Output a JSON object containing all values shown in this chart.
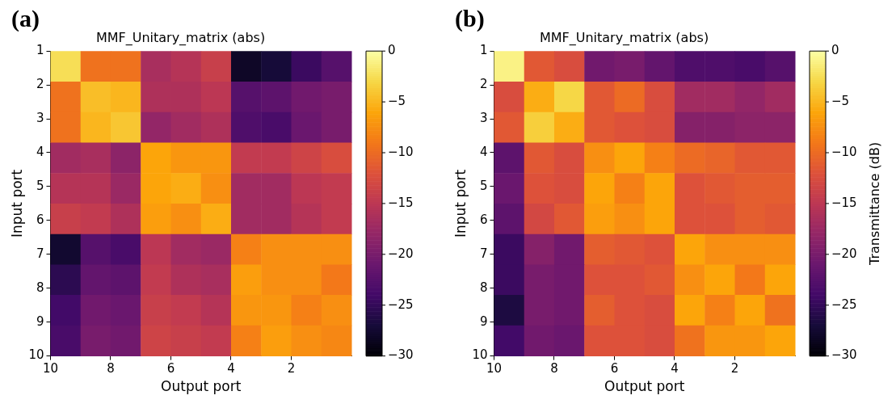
{
  "chart_data": [
    {
      "type": "heatmap",
      "title": "MMF_Unitary_matrix (abs)",
      "xlabel": "Output port",
      "ylabel": "Input port",
      "annotations": [
        "(a)"
      ],
      "xlim": [
        10,
        0
      ],
      "xticks": [
        10,
        8,
        6,
        4,
        2
      ],
      "ylim": [
        10,
        1
      ],
      "yticks": [
        1,
        2,
        3,
        4,
        5,
        6,
        7,
        8,
        9,
        10
      ],
      "clim": [
        -30,
        0
      ],
      "cticks": [
        0,
        -5,
        -10,
        -15,
        -20,
        -25,
        -30
      ],
      "cells": [
        [
          -2.5,
          -9.5,
          -9.5,
          -16.5,
          -15.5,
          -14,
          -28,
          -27,
          -24.5,
          -22.5
        ],
        [
          -9.5,
          -4.5,
          -5,
          -16,
          -16,
          -15,
          -22.5,
          -22,
          -20.5,
          -20
        ],
        [
          -9.5,
          -5,
          -4,
          -18,
          -17,
          -16,
          -23,
          -23.5,
          -21,
          -20
        ],
        [
          -17,
          -16.5,
          -18.5,
          -6,
          -7,
          -7,
          -14.5,
          -14.5,
          -13.5,
          -12.5
        ],
        [
          -15.5,
          -15.5,
          -17.5,
          -6,
          -5.5,
          -7.5,
          -17,
          -17,
          -15,
          -14.5
        ],
        [
          -14,
          -14.5,
          -16,
          -6.5,
          -7.5,
          -5.5,
          -17,
          -17,
          -15.5,
          -14.5
        ],
        [
          -27.5,
          -22.5,
          -23.5,
          -15,
          -17,
          -17.5,
          -8.5,
          -7.5,
          -7.5,
          -7.5
        ],
        [
          -25.5,
          -21.5,
          -22,
          -14.5,
          -16,
          -16.5,
          -6.5,
          -7.5,
          -7.5,
          -9
        ],
        [
          -24,
          -20.5,
          -21,
          -14,
          -14.5,
          -15.5,
          -7,
          -7,
          -8.5,
          -7.5
        ],
        [
          -23.5,
          -20,
          -20.5,
          -13.5,
          -14,
          -14.5,
          -8.5,
          -6.5,
          -7.5,
          -8
        ]
      ]
    },
    {
      "type": "heatmap",
      "title": "MMF_Unitary_matrix (abs)",
      "xlabel": "Output port",
      "ylabel": "Input port",
      "clabel": "Transmittance (dB)",
      "annotations": [
        "(b)"
      ],
      "xlim": [
        10,
        0
      ],
      "xticks": [
        10,
        8,
        6,
        4,
        2
      ],
      "ylim": [
        10,
        1
      ],
      "yticks": [
        1,
        2,
        3,
        4,
        5,
        6,
        7,
        8,
        9,
        10
      ],
      "clim": [
        -30,
        0
      ],
      "cticks": [
        0,
        -5,
        -10,
        -15,
        -20,
        -25,
        -30
      ],
      "cells": [
        [
          -1,
          -11.5,
          -12.5,
          -20.5,
          -20,
          -21.5,
          -23,
          -23,
          -23.5,
          -22.5
        ],
        [
          -12.5,
          -5.5,
          -3,
          -11.5,
          -10,
          -12.5,
          -17,
          -17,
          -18,
          -17
        ],
        [
          -11.5,
          -3.5,
          -5.5,
          -11.5,
          -12,
          -12.5,
          -19,
          -19,
          -18.5,
          -18.5
        ],
        [
          -22,
          -11.5,
          -12.5,
          -7.5,
          -6,
          -8.5,
          -10,
          -10.5,
          -11.5,
          -11.5
        ],
        [
          -21,
          -12,
          -12.5,
          -6,
          -8.5,
          -6,
          -12,
          -11.5,
          -11,
          -11
        ],
        [
          -22,
          -13,
          -11.5,
          -6.5,
          -7.5,
          -6,
          -12,
          -12,
          -11,
          -11.5
        ],
        [
          -24.5,
          -19,
          -20.5,
          -11,
          -11.5,
          -12,
          -6,
          -7.5,
          -7.5,
          -7.5
        ],
        [
          -24.5,
          -20,
          -20.5,
          -12,
          -12,
          -11.5,
          -7.5,
          -6,
          -9,
          -6
        ],
        [
          -26.5,
          -20,
          -20.5,
          -11,
          -12,
          -12.5,
          -6,
          -8.5,
          -6,
          -9.5
        ],
        [
          -24,
          -20.5,
          -21,
          -12,
          -12,
          -12.5,
          -9.5,
          -7,
          -7,
          -6
        ]
      ]
    }
  ]
}
